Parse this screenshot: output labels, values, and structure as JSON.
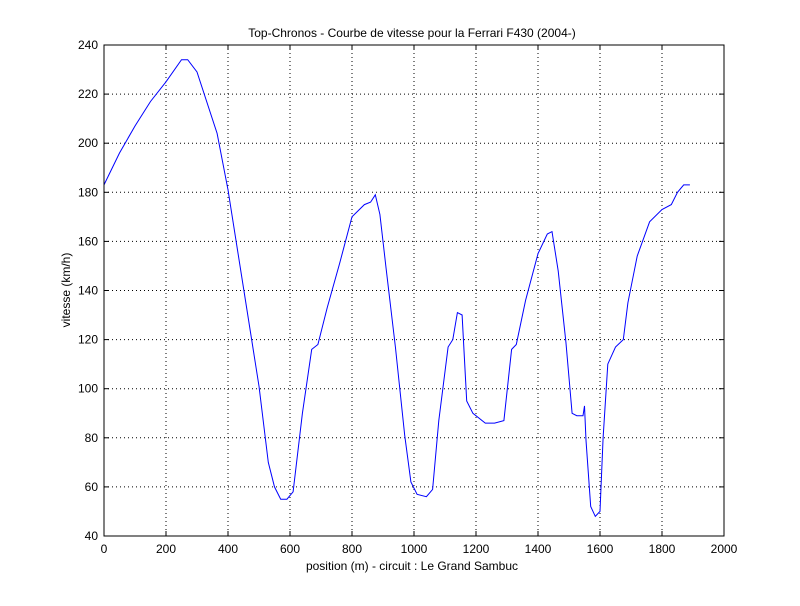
{
  "chart_data": {
    "type": "line",
    "title": "Top-Chronos - Courbe de vitesse pour la Ferrari F430 (2004-)",
    "xlabel": "position (m) - circuit : Le Grand Sambuc",
    "ylabel": "vitesse (km/h)",
    "xlim": [
      0,
      2000
    ],
    "ylim": [
      40,
      240
    ],
    "xticks": [
      "0",
      "200",
      "400",
      "600",
      "800",
      "1000",
      "1200",
      "1400",
      "1600",
      "1800",
      "2000"
    ],
    "yticks": [
      "40",
      "60",
      "80",
      "100",
      "120",
      "140",
      "160",
      "180",
      "200",
      "220",
      "240"
    ],
    "grid": true,
    "line_color": "#0000ff",
    "series": [
      {
        "x": [
          0,
          50,
          100,
          150,
          200,
          250,
          270,
          300,
          365,
          400,
          450,
          500,
          530,
          550,
          570,
          590,
          610,
          640,
          670,
          690,
          720,
          760,
          800,
          840,
          860,
          875,
          890,
          910,
          940,
          970,
          990,
          1010,
          1040,
          1060,
          1080,
          1110,
          1125,
          1140,
          1155,
          1170,
          1190,
          1230,
          1260,
          1290,
          1315,
          1330,
          1360,
          1400,
          1430,
          1445,
          1465,
          1490,
          1510,
          1525,
          1545,
          1550,
          1555,
          1570,
          1585,
          1600,
          1610,
          1625,
          1650,
          1675,
          1690,
          1720,
          1760,
          1800,
          1830,
          1850,
          1870,
          1890
        ],
        "y": [
          183,
          196,
          207,
          217,
          225,
          234,
          234,
          229,
          204,
          181,
          141,
          101,
          70,
          60,
          55,
          55,
          58,
          90,
          116,
          118,
          133,
          151,
          170,
          175,
          176,
          179,
          171,
          149,
          117,
          81,
          62,
          57,
          56,
          59,
          87,
          117,
          120,
          131,
          130,
          95,
          90,
          86,
          86,
          87,
          116,
          118,
          136,
          155,
          163,
          164,
          148,
          119,
          90,
          89,
          89,
          93,
          79,
          52,
          48,
          50,
          80,
          110,
          117,
          120,
          135,
          154,
          168,
          173,
          175,
          180,
          183,
          183
        ]
      }
    ]
  }
}
